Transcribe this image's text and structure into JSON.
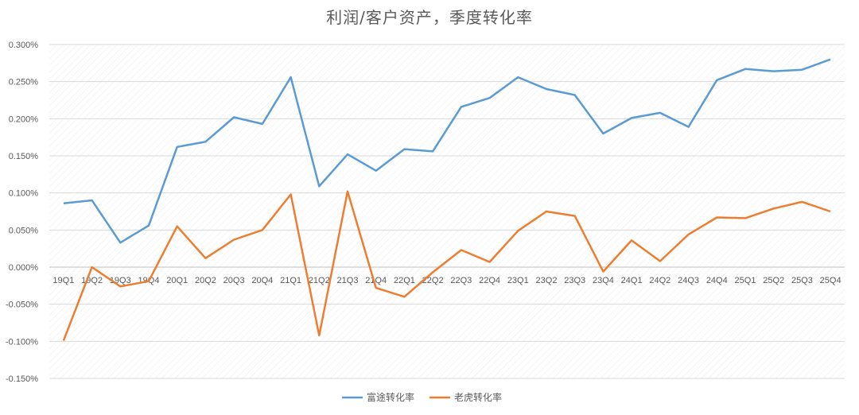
{
  "chart_data": {
    "type": "line",
    "title": "利润/客户资产，季度转化率",
    "xlabel": "",
    "ylabel": "",
    "ylim": [
      -0.0015,
      0.003
    ],
    "y_ticks": [
      "0.300%",
      "0.250%",
      "0.200%",
      "0.150%",
      "0.100%",
      "0.050%",
      "0.000%",
      "-0.050%",
      "-0.100%",
      "-0.150%"
    ],
    "categories": [
      "19Q1",
      "19Q2",
      "19Q3",
      "19Q4",
      "20Q1",
      "20Q2",
      "20Q3",
      "20Q4",
      "21Q1",
      "21Q2",
      "21Q3",
      "21Q4",
      "22Q1",
      "22Q2",
      "22Q3",
      "22Q4",
      "23Q1",
      "23Q2",
      "23Q3",
      "23Q4",
      "24Q1",
      "24Q2",
      "24Q3",
      "24Q4",
      "25Q1",
      "25Q2",
      "25Q3",
      "25Q4"
    ],
    "series": [
      {
        "name": "富途转化率",
        "color": "#5B9BD5",
        "values": [
          0.00086,
          0.0009,
          0.00033,
          0.00056,
          0.00162,
          0.00169,
          0.00202,
          0.00193,
          0.00256,
          0.00109,
          0.00152,
          0.0013,
          0.00159,
          0.00156,
          0.00216,
          0.00228,
          0.00256,
          0.0024,
          0.00232,
          0.0018,
          0.00201,
          0.00208,
          0.00189,
          0.00252,
          0.00267,
          0.00264,
          0.00266,
          0.0028
        ]
      },
      {
        "name": "老虎转化率",
        "color": "#ED7D31",
        "values": [
          -0.00099,
          0.0,
          -0.00026,
          -0.00019,
          0.00055,
          0.00012,
          0.00037,
          0.0005,
          0.00098,
          -0.00092,
          0.00102,
          -0.00028,
          -0.0004,
          -7e-05,
          0.00023,
          7e-05,
          0.00049,
          0.00075,
          0.00069,
          -6e-05,
          0.00036,
          8e-05,
          0.00044,
          0.00067,
          0.00066,
          0.00079,
          0.00088,
          0.00075
        ]
      }
    ],
    "grid": true,
    "legend": "bottom-center"
  }
}
